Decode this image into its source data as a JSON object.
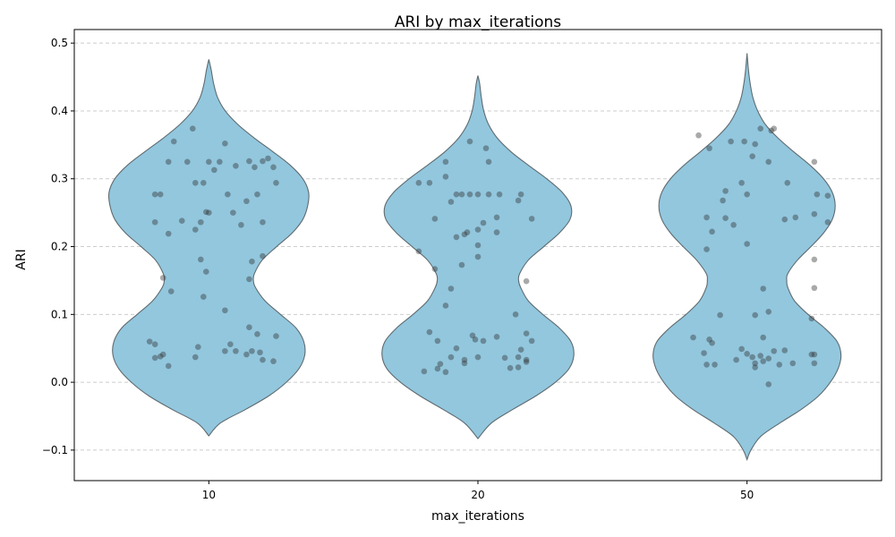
{
  "chart_data": {
    "type": "violin",
    "title": "ARI by max_iterations",
    "xlabel": "max_iterations",
    "ylabel": "ARI",
    "categories": [
      "10",
      "20",
      "50"
    ],
    "ylim": [
      -0.145,
      0.52
    ],
    "yticks": [
      -0.1,
      0.0,
      0.1,
      0.2,
      0.3,
      0.4,
      0.5
    ],
    "ytick_labels": [
      "−0.1",
      "0.0",
      "0.1",
      "0.2",
      "0.3",
      "0.4",
      "0.5"
    ],
    "grid": "y-dashed",
    "colors": {
      "violin_fill": "#92c7de",
      "violin_edge": "#5f6b70",
      "points": "#333333",
      "grid": "#cccccc"
    },
    "violins": [
      {
        "category": "10",
        "profile": [
          [
            -0.079,
            0.0
          ],
          [
            -0.06,
            0.12
          ],
          [
            -0.04,
            0.38
          ],
          [
            -0.02,
            0.62
          ],
          [
            0.0,
            0.8
          ],
          [
            0.02,
            0.93
          ],
          [
            0.04,
            0.99
          ],
          [
            0.06,
            0.98
          ],
          [
            0.08,
            0.9
          ],
          [
            0.1,
            0.74
          ],
          [
            0.12,
            0.58
          ],
          [
            0.14,
            0.48
          ],
          [
            0.15,
            0.46
          ],
          [
            0.16,
            0.47
          ],
          [
            0.18,
            0.55
          ],
          [
            0.2,
            0.7
          ],
          [
            0.22,
            0.86
          ],
          [
            0.24,
            0.97
          ],
          [
            0.26,
            1.02
          ],
          [
            0.28,
            1.03
          ],
          [
            0.3,
            0.97
          ],
          [
            0.32,
            0.84
          ],
          [
            0.34,
            0.66
          ],
          [
            0.36,
            0.47
          ],
          [
            0.38,
            0.3
          ],
          [
            0.4,
            0.17
          ],
          [
            0.42,
            0.09
          ],
          [
            0.44,
            0.05
          ],
          [
            0.46,
            0.025
          ],
          [
            0.476,
            0.0
          ]
        ],
        "points": [
          [
            -0.18,
            0.277
          ],
          [
            -0.13,
            0.355
          ],
          [
            -0.06,
            0.374
          ],
          [
            0.0,
            0.325
          ],
          [
            0.06,
            0.352
          ],
          [
            -0.15,
            0.325
          ],
          [
            -0.08,
            0.325
          ],
          [
            0.04,
            0.325
          ],
          [
            0.1,
            0.319
          ],
          [
            0.15,
            0.326
          ],
          [
            0.2,
            0.326
          ],
          [
            0.22,
            0.33
          ],
          [
            0.17,
            0.317
          ],
          [
            0.24,
            0.317
          ],
          [
            -0.05,
            0.294
          ],
          [
            -0.2,
            0.277
          ],
          [
            0.02,
            0.313
          ],
          [
            0.25,
            0.294
          ],
          [
            -0.02,
            0.294
          ],
          [
            0.07,
            0.277
          ],
          [
            0.18,
            0.277
          ],
          [
            0.14,
            0.267
          ],
          [
            -0.01,
            0.251
          ],
          [
            0.09,
            0.25
          ],
          [
            0.0,
            0.25
          ],
          [
            -0.2,
            0.236
          ],
          [
            -0.1,
            0.238
          ],
          [
            -0.03,
            0.236
          ],
          [
            0.12,
            0.232
          ],
          [
            0.2,
            0.236
          ],
          [
            -0.05,
            0.225
          ],
          [
            -0.15,
            0.219
          ],
          [
            0.2,
            0.186
          ],
          [
            0.16,
            0.178
          ],
          [
            -0.03,
            0.181
          ],
          [
            -0.01,
            0.163
          ],
          [
            0.15,
            0.152
          ],
          [
            -0.17,
            0.154
          ],
          [
            -0.14,
            0.134
          ],
          [
            -0.02,
            0.126
          ],
          [
            0.06,
            0.106
          ],
          [
            0.15,
            0.081
          ],
          [
            0.18,
            0.071
          ],
          [
            0.25,
            0.068
          ],
          [
            -0.22,
            0.06
          ],
          [
            -0.2,
            0.056
          ],
          [
            0.08,
            0.056
          ],
          [
            -0.04,
            0.052
          ],
          [
            0.1,
            0.046
          ],
          [
            0.06,
            0.046
          ],
          [
            0.16,
            0.046
          ],
          [
            0.19,
            0.044
          ],
          [
            0.14,
            0.041
          ],
          [
            -0.17,
            0.041
          ],
          [
            -0.18,
            0.038
          ],
          [
            -0.2,
            0.036
          ],
          [
            -0.05,
            0.037
          ],
          [
            0.2,
            0.033
          ],
          [
            0.24,
            0.031
          ],
          [
            -0.15,
            0.024
          ]
        ]
      },
      {
        "category": "20",
        "profile": [
          [
            -0.083,
            0.0
          ],
          [
            -0.06,
            0.14
          ],
          [
            -0.04,
            0.36
          ],
          [
            -0.02,
            0.6
          ],
          [
            0.0,
            0.8
          ],
          [
            0.02,
            0.94
          ],
          [
            0.04,
            0.99
          ],
          [
            0.06,
            0.96
          ],
          [
            0.08,
            0.84
          ],
          [
            0.1,
            0.67
          ],
          [
            0.12,
            0.52
          ],
          [
            0.14,
            0.44
          ],
          [
            0.15,
            0.42
          ],
          [
            0.16,
            0.43
          ],
          [
            0.18,
            0.52
          ],
          [
            0.2,
            0.68
          ],
          [
            0.22,
            0.84
          ],
          [
            0.24,
            0.95
          ],
          [
            0.26,
            0.96
          ],
          [
            0.28,
            0.87
          ],
          [
            0.3,
            0.71
          ],
          [
            0.32,
            0.52
          ],
          [
            0.34,
            0.34
          ],
          [
            0.36,
            0.2
          ],
          [
            0.38,
            0.11
          ],
          [
            0.4,
            0.06
          ],
          [
            0.42,
            0.035
          ],
          [
            0.44,
            0.018
          ],
          [
            0.452,
            0.0
          ]
        ],
        "points": [
          [
            -0.03,
            0.355
          ],
          [
            0.03,
            0.345
          ],
          [
            -0.22,
            0.294
          ],
          [
            -0.18,
            0.294
          ],
          [
            -0.12,
            0.303
          ],
          [
            -0.12,
            0.325
          ],
          [
            0.04,
            0.325
          ],
          [
            -0.08,
            0.277
          ],
          [
            -0.03,
            0.277
          ],
          [
            0.0,
            0.277
          ],
          [
            0.04,
            0.277
          ],
          [
            -0.06,
            0.277
          ],
          [
            0.08,
            0.277
          ],
          [
            0.16,
            0.277
          ],
          [
            0.15,
            0.268
          ],
          [
            -0.1,
            0.266
          ],
          [
            0.07,
            0.243
          ],
          [
            -0.16,
            0.241
          ],
          [
            0.02,
            0.235
          ],
          [
            0.2,
            0.241
          ],
          [
            0.0,
            0.225
          ],
          [
            -0.04,
            0.221
          ],
          [
            0.07,
            0.221
          ],
          [
            -0.05,
            0.218
          ],
          [
            -0.08,
            0.214
          ],
          [
            0.0,
            0.202
          ],
          [
            -0.22,
            0.193
          ],
          [
            0.0,
            0.185
          ],
          [
            -0.06,
            0.173
          ],
          [
            -0.16,
            0.167
          ],
          [
            0.18,
            0.149
          ],
          [
            -0.1,
            0.138
          ],
          [
            -0.12,
            0.113
          ],
          [
            0.14,
            0.1
          ],
          [
            -0.18,
            0.074
          ],
          [
            0.18,
            0.072
          ],
          [
            -0.02,
            0.069
          ],
          [
            0.07,
            0.067
          ],
          [
            -0.15,
            0.061
          ],
          [
            -0.01,
            0.063
          ],
          [
            0.2,
            0.061
          ],
          [
            0.02,
            0.061
          ],
          [
            -0.08,
            0.05
          ],
          [
            0.16,
            0.048
          ],
          [
            -0.1,
            0.037
          ],
          [
            0.1,
            0.036
          ],
          [
            0.0,
            0.037
          ],
          [
            0.15,
            0.037
          ],
          [
            -0.05,
            0.033
          ],
          [
            -0.05,
            0.028
          ],
          [
            0.18,
            0.03
          ],
          [
            0.18,
            0.033
          ],
          [
            -0.14,
            0.027
          ],
          [
            0.12,
            0.021
          ],
          [
            0.15,
            0.022
          ],
          [
            -0.15,
            0.02
          ],
          [
            -0.2,
            0.016
          ],
          [
            -0.12,
            0.015
          ]
        ]
      },
      {
        "category": "50",
        "profile": [
          [
            -0.114,
            0.0
          ],
          [
            -0.1,
            0.04
          ],
          [
            -0.08,
            0.14
          ],
          [
            -0.06,
            0.34
          ],
          [
            -0.04,
            0.56
          ],
          [
            -0.02,
            0.74
          ],
          [
            0.0,
            0.86
          ],
          [
            0.02,
            0.94
          ],
          [
            0.04,
            0.97
          ],
          [
            0.06,
            0.93
          ],
          [
            0.08,
            0.8
          ],
          [
            0.1,
            0.63
          ],
          [
            0.12,
            0.49
          ],
          [
            0.14,
            0.42
          ],
          [
            0.15,
            0.41
          ],
          [
            0.16,
            0.42
          ],
          [
            0.18,
            0.52
          ],
          [
            0.2,
            0.66
          ],
          [
            0.22,
            0.79
          ],
          [
            0.24,
            0.88
          ],
          [
            0.26,
            0.91
          ],
          [
            0.28,
            0.88
          ],
          [
            0.3,
            0.79
          ],
          [
            0.32,
            0.65
          ],
          [
            0.34,
            0.48
          ],
          [
            0.36,
            0.32
          ],
          [
            0.38,
            0.19
          ],
          [
            0.4,
            0.11
          ],
          [
            0.42,
            0.06
          ],
          [
            0.44,
            0.033
          ],
          [
            0.46,
            0.015
          ],
          [
            0.485,
            0.0
          ]
        ],
        "points": [
          [
            0.05,
            0.374
          ],
          [
            0.1,
            0.374
          ],
          [
            -0.18,
            0.364
          ],
          [
            0.09,
            0.371
          ],
          [
            -0.06,
            0.355
          ],
          [
            -0.01,
            0.355
          ],
          [
            0.03,
            0.351
          ],
          [
            -0.14,
            0.345
          ],
          [
            0.02,
            0.333
          ],
          [
            0.08,
            0.325
          ],
          [
            0.25,
            0.325
          ],
          [
            -0.02,
            0.294
          ],
          [
            0.15,
            0.294
          ],
          [
            -0.08,
            0.282
          ],
          [
            0.0,
            0.277
          ],
          [
            0.26,
            0.277
          ],
          [
            0.3,
            0.275
          ],
          [
            -0.09,
            0.268
          ],
          [
            0.25,
            0.248
          ],
          [
            -0.15,
            0.243
          ],
          [
            -0.08,
            0.242
          ],
          [
            0.14,
            0.24
          ],
          [
            0.18,
            0.243
          ],
          [
            0.3,
            0.236
          ],
          [
            -0.05,
            0.232
          ],
          [
            -0.13,
            0.222
          ],
          [
            0.0,
            0.204
          ],
          [
            -0.15,
            0.196
          ],
          [
            0.25,
            0.181
          ],
          [
            0.25,
            0.139
          ],
          [
            0.06,
            0.138
          ],
          [
            0.08,
            0.104
          ],
          [
            -0.1,
            0.099
          ],
          [
            0.03,
            0.099
          ],
          [
            0.24,
            0.094
          ],
          [
            -0.2,
            0.066
          ],
          [
            0.06,
            0.066
          ],
          [
            -0.14,
            0.063
          ],
          [
            -0.13,
            0.058
          ],
          [
            0.1,
            0.046
          ],
          [
            -0.02,
            0.049
          ],
          [
            0.14,
            0.047
          ],
          [
            0.0,
            0.042
          ],
          [
            0.25,
            0.041
          ],
          [
            0.24,
            0.041
          ],
          [
            -0.16,
            0.043
          ],
          [
            0.05,
            0.039
          ],
          [
            0.02,
            0.037
          ],
          [
            0.08,
            0.035
          ],
          [
            -0.04,
            0.033
          ],
          [
            0.06,
            0.031
          ],
          [
            0.03,
            0.028
          ],
          [
            -0.12,
            0.026
          ],
          [
            -0.15,
            0.026
          ],
          [
            0.12,
            0.026
          ],
          [
            0.17,
            0.028
          ],
          [
            0.25,
            0.028
          ],
          [
            0.03,
            0.022
          ],
          [
            0.08,
            -0.003
          ]
        ]
      }
    ]
  }
}
